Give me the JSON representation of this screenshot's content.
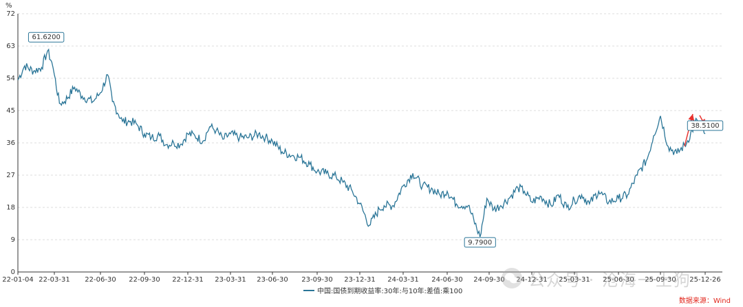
{
  "chart_data": {
    "type": "line",
    "unit_label": "%",
    "ylim": [
      0,
      72
    ],
    "yticks": [
      0,
      9,
      18,
      27,
      36,
      45,
      54,
      63,
      72
    ],
    "x_tick_labels": [
      "22-01-04",
      "22-03-31",
      "22-06-30",
      "22-09-30",
      "22-12-31",
      "23-03-31",
      "23-06-30",
      "23-09-30",
      "23-12-31",
      "24-03-31",
      "24-06-30",
      "24-09-30",
      "24-12-31",
      "25-03-31",
      "25-06-30",
      "25-09-30",
      "25-12-26"
    ],
    "grid": true,
    "legend_position": "bottom-center",
    "series": [
      {
        "name": "中国:国债到期收益率:30年:与10年:差值:乘100",
        "color": "#2a7597",
        "x": [
          "22-01-04",
          "22-01-20",
          "22-02-10",
          "22-03-01",
          "22-03-15",
          "22-03-25",
          "22-03-31",
          "22-04-10",
          "22-04-20",
          "22-05-10",
          "22-05-25",
          "22-06-15",
          "22-06-30",
          "22-07-15",
          "22-07-25",
          "22-08-15",
          "22-09-01",
          "22-09-15",
          "22-09-30",
          "22-10-15",
          "22-11-01",
          "22-11-15",
          "22-12-01",
          "22-12-15",
          "22-12-31",
          "23-01-15",
          "23-02-01",
          "23-02-15",
          "23-03-01",
          "23-03-15",
          "23-03-31",
          "23-04-20",
          "23-05-10",
          "23-05-31",
          "23-06-15",
          "23-06-30",
          "23-07-20",
          "23-08-10",
          "23-08-25",
          "23-09-15",
          "23-09-30",
          "23-10-20",
          "23-11-10",
          "23-11-25",
          "23-12-15",
          "23-12-31",
          "24-01-20",
          "24-02-10",
          "24-02-20",
          "24-03-10",
          "24-03-31",
          "24-04-20",
          "24-05-10",
          "24-05-31",
          "24-06-15",
          "24-06-30",
          "24-07-20",
          "24-08-15",
          "24-09-10",
          "24-09-25",
          "24-10-10",
          "24-10-25",
          "24-11-15",
          "24-12-01",
          "24-12-15",
          "24-12-31",
          "25-01-20",
          "25-02-10",
          "25-02-25",
          "25-03-15",
          "25-03-31",
          "25-04-15",
          "25-05-01",
          "25-05-20",
          "25-06-10",
          "25-06-30",
          "25-07-20",
          "25-08-10",
          "25-09-01",
          "25-09-15",
          "25-09-30",
          "25-10-15",
          "25-11-01",
          "25-11-20",
          "25-12-10",
          "25-12-26"
        ],
        "values": [
          53.5,
          57.5,
          56.0,
          57.0,
          61.62,
          58.5,
          55.0,
          47.0,
          47.5,
          51.5,
          49.0,
          47.5,
          50.0,
          55.0,
          47.5,
          42.0,
          42.0,
          41.0,
          38.5,
          37.5,
          38.0,
          35.5,
          36.0,
          35.5,
          38.5,
          38.0,
          36.5,
          40.5,
          39.5,
          37.0,
          38.5,
          37.5,
          37.5,
          38.5,
          37.5,
          36.5,
          33.5,
          32.5,
          32.0,
          30.0,
          28.0,
          27.5,
          26.5,
          25.0,
          22.5,
          19.0,
          13.0,
          17.5,
          18.5,
          18.5,
          24.0,
          27.5,
          24.0,
          23.0,
          21.5,
          22.5,
          19.0,
          18.5,
          9.79,
          20.5,
          17.5,
          18.5,
          21.0,
          23.5,
          22.5,
          19.5,
          21.0,
          18.5,
          21.5,
          18.0,
          20.0,
          21.5,
          19.0,
          22.5,
          19.5,
          20.5,
          21.5,
          27.0,
          31.5,
          38.0,
          43.5,
          35.0,
          33.0,
          36.0,
          42.5,
          38.51
        ]
      }
    ],
    "annotations": [
      {
        "label": "61.6200",
        "x": "22-03-15",
        "value": 61.62
      },
      {
        "label": "9.7900",
        "x": "24-09-10",
        "value": 9.79
      },
      {
        "label": "38.5100",
        "x": "25-12-26",
        "value": 38.51
      }
    ]
  },
  "legend": {
    "label": "中国:国债到期收益率:30年:与10年:差值:乘100"
  },
  "source": {
    "text": "数据来源：Wind"
  },
  "watermark": {
    "text": "公众号 · 沧海一土狗"
  },
  "arrow_color": "#e8332f"
}
